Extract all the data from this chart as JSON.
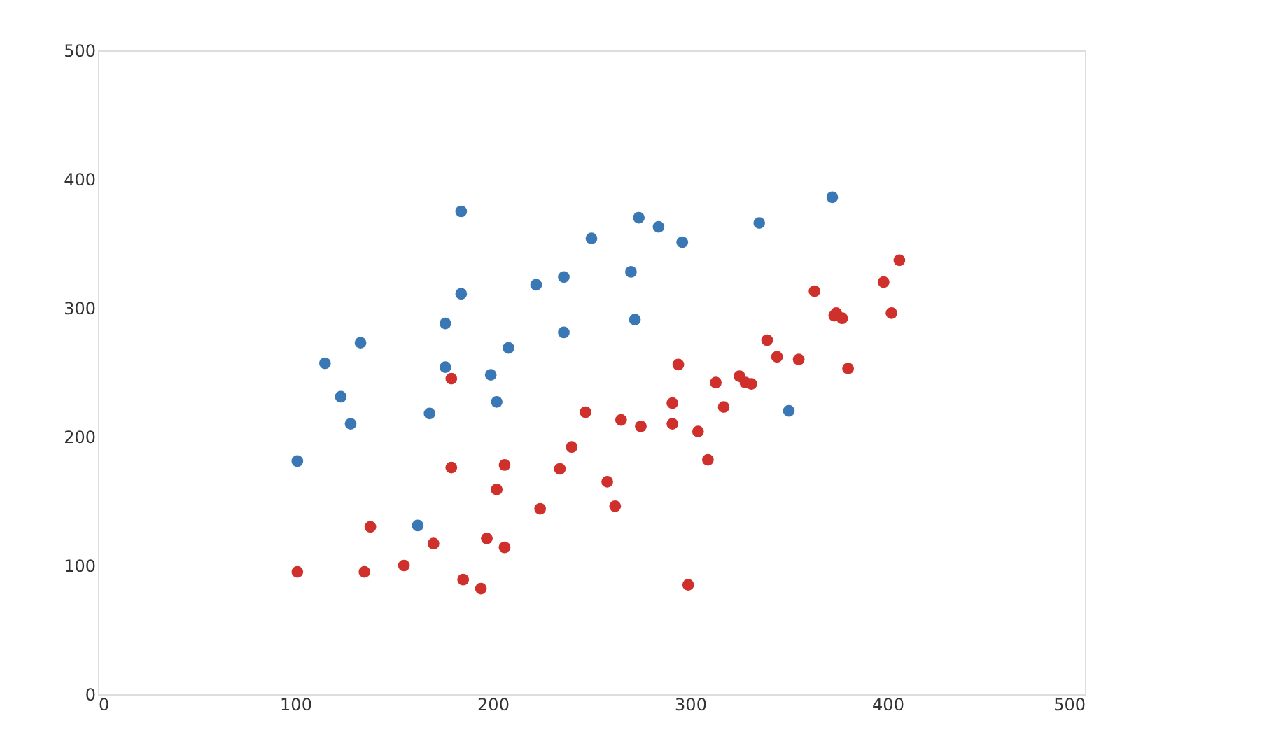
{
  "chart_data": {
    "type": "scatter",
    "xlim": [
      0,
      500
    ],
    "ylim": [
      0,
      500
    ],
    "xticks": [
      0,
      100,
      200,
      300,
      400,
      500
    ],
    "yticks": [
      0,
      100,
      200,
      300,
      400,
      500
    ],
    "grid": false,
    "marker": "circle",
    "series": [
      {
        "color": "#3a78b5",
        "x": [
          101,
          115,
          123,
          128,
          133,
          162,
          168,
          176,
          176,
          184,
          184,
          199,
          202,
          208,
          222,
          236,
          236,
          250,
          270,
          272,
          274,
          284,
          296,
          335,
          350,
          372
        ],
        "values": [
          181,
          257,
          231,
          210,
          273,
          131,
          218,
          288,
          254,
          375,
          311,
          248,
          227,
          269,
          318,
          324,
          281,
          354,
          328,
          291,
          370,
          363,
          351,
          366,
          220,
          386
        ]
      },
      {
        "color": "#d0302b",
        "x": [
          101,
          135,
          138,
          155,
          170,
          179,
          179,
          185,
          194,
          197,
          202,
          206,
          206,
          224,
          234,
          240,
          247,
          258,
          262,
          265,
          275,
          291,
          291,
          294,
          299,
          304,
          309,
          313,
          317,
          325,
          328,
          331,
          339,
          344,
          355,
          363,
          373,
          374,
          377,
          380,
          398,
          402,
          406
        ],
        "values": [
          95,
          95,
          130,
          100,
          117,
          245,
          176,
          89,
          82,
          121,
          159,
          178,
          114,
          144,
          175,
          192,
          219,
          165,
          146,
          213,
          208,
          226,
          210,
          256,
          85,
          204,
          182,
          242,
          223,
          247,
          242,
          241,
          275,
          262,
          260,
          313,
          294,
          296,
          292,
          253,
          320,
          296,
          337
        ]
      }
    ]
  }
}
